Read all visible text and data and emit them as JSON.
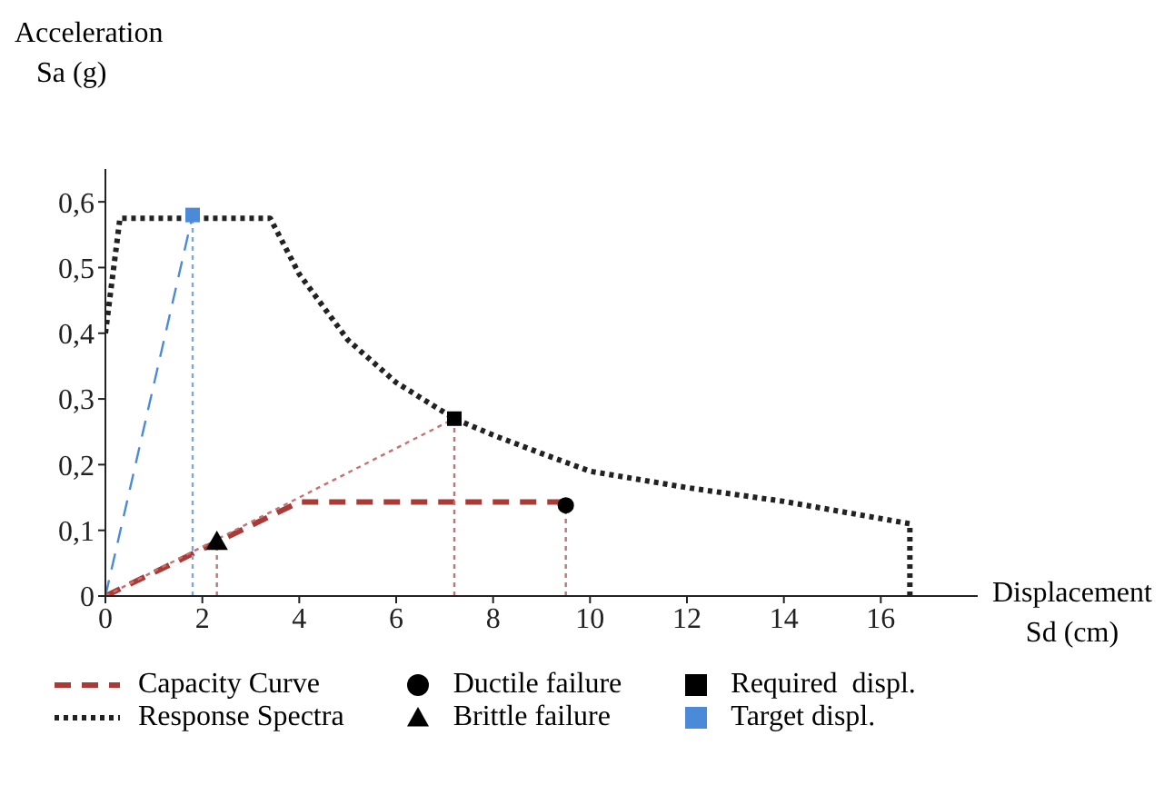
{
  "chart_data": {
    "type": "line",
    "xlabel": "Displacement Sd (cm)",
    "ylabel": "Acceleration Sa (g)",
    "xlim": [
      0,
      18
    ],
    "xticks": [
      0,
      2,
      4,
      6,
      8,
      10,
      12,
      14,
      16
    ],
    "ylim": [
      0,
      0.65
    ],
    "yticks": [
      0,
      {
        "value": 0.1,
        "label": "0,1"
      },
      {
        "value": 0.2,
        "label": "0,2"
      },
      {
        "value": 0.3,
        "label": "0,3"
      },
      {
        "value": 0.4,
        "label": "0,4"
      },
      {
        "value": 0.5,
        "label": "0,5"
      },
      {
        "value": 0.6,
        "label": "0,6"
      }
    ],
    "grid": false,
    "legend": "bottom",
    "series": [
      {
        "name": "Capacity Curve",
        "color": "#a93a35",
        "line_style": "dashed",
        "marker": "none",
        "x": [
          0,
          4,
          9.5
        ],
        "values": [
          0,
          0.143,
          0.143
        ]
      },
      {
        "name": "Response Spectra",
        "color": "#222222",
        "line_style": "dotted",
        "marker": "none",
        "x": [
          0,
          0.3,
          3.4,
          4,
          5,
          6,
          7.2,
          8,
          9,
          10,
          12,
          14,
          16.6,
          16.6
        ],
        "values": [
          0.4,
          0.575,
          0.575,
          0.49,
          0.39,
          0.325,
          0.27,
          0.245,
          0.217,
          0.19,
          0.165,
          0.144,
          0.11,
          0
        ]
      },
      {
        "color": "#4a8ad8",
        "line_style": "dashed",
        "marker": "none",
        "x": [
          0,
          1.8
        ],
        "values": [
          0,
          0.58
        ]
      },
      {
        "color": "#c87070",
        "line_style": "dotted",
        "marker": "none",
        "x": [
          0,
          7.2
        ],
        "values": [
          0,
          0.27
        ]
      },
      {
        "color": "#7aa8e0",
        "line_style": "dotted",
        "marker": "none",
        "x": [
          1.8,
          1.8
        ],
        "values": [
          0,
          0.58
        ]
      },
      {
        "color": "#c87070",
        "line_style": "dotted",
        "marker": "none",
        "x": [
          2.3,
          2.3
        ],
        "values": [
          0,
          0.08
        ]
      },
      {
        "color": "#c87070",
        "line_style": "dotted",
        "marker": "none",
        "x": [
          7.2,
          7.2
        ],
        "values": [
          0,
          0.27
        ]
      },
      {
        "color": "#c87070",
        "line_style": "dotted",
        "marker": "none",
        "x": [
          9.5,
          9.5
        ],
        "values": [
          0,
          0.138
        ]
      },
      {
        "name": "Ductile failure",
        "type": "scatter",
        "color": "#000000",
        "marker": "circle",
        "x": [
          9.5
        ],
        "values": [
          0.138
        ]
      },
      {
        "name": "Brittle failure",
        "type": "scatter",
        "color": "#000000",
        "marker": "triangle",
        "x": [
          2.3
        ],
        "values": [
          0.08
        ]
      },
      {
        "name": "Required  displ.",
        "type": "scatter",
        "color": "#000000",
        "marker": "square",
        "x": [
          7.2
        ],
        "values": [
          0.27
        ]
      },
      {
        "name": "Target displ.",
        "type": "scatter",
        "color": "#4a8ad8",
        "marker": "square",
        "x": [
          1.8
        ],
        "values": [
          0.58
        ]
      }
    ]
  }
}
